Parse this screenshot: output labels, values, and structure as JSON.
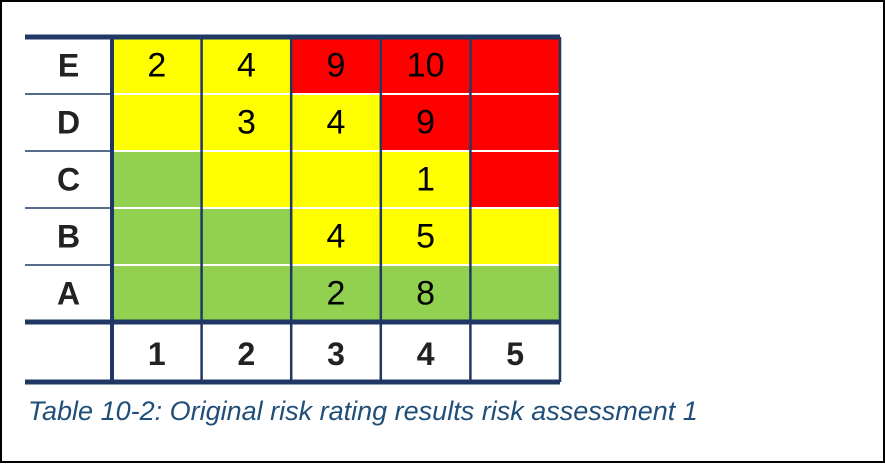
{
  "table": {
    "rows": [
      {
        "label": "E",
        "cells": [
          {
            "value": 2,
            "color": "#ffff00"
          },
          {
            "value": 4,
            "color": "#ffff00"
          },
          {
            "value": 9,
            "color": "#ff0000"
          },
          {
            "value": 10,
            "color": "#ff0000"
          },
          {
            "value": null,
            "color": "#ff0000"
          }
        ]
      },
      {
        "label": "D",
        "cells": [
          {
            "value": null,
            "color": "#ffff00"
          },
          {
            "value": 3,
            "color": "#ffff00"
          },
          {
            "value": 4,
            "color": "#ffff00"
          },
          {
            "value": 9,
            "color": "#ff0000"
          },
          {
            "value": null,
            "color": "#ff0000"
          }
        ]
      },
      {
        "label": "C",
        "cells": [
          {
            "value": null,
            "color": "#92d050"
          },
          {
            "value": null,
            "color": "#ffff00"
          },
          {
            "value": null,
            "color": "#ffff00"
          },
          {
            "value": 1,
            "color": "#ffff00"
          },
          {
            "value": null,
            "color": "#ff0000"
          }
        ]
      },
      {
        "label": "B",
        "cells": [
          {
            "value": null,
            "color": "#92d050"
          },
          {
            "value": null,
            "color": "#92d050"
          },
          {
            "value": 4,
            "color": "#ffff00"
          },
          {
            "value": 5,
            "color": "#ffff00"
          },
          {
            "value": null,
            "color": "#ffff00"
          }
        ]
      },
      {
        "label": "A",
        "cells": [
          {
            "value": null,
            "color": "#92d050"
          },
          {
            "value": null,
            "color": "#92d050"
          },
          {
            "value": 2,
            "color": "#92d050"
          },
          {
            "value": 8,
            "color": "#92d050"
          },
          {
            "value": null,
            "color": "#92d050"
          }
        ]
      }
    ],
    "columns": [
      1,
      2,
      3,
      4,
      5
    ]
  },
  "caption": "Table 10-2: Original risk rating results risk assessment 1"
}
